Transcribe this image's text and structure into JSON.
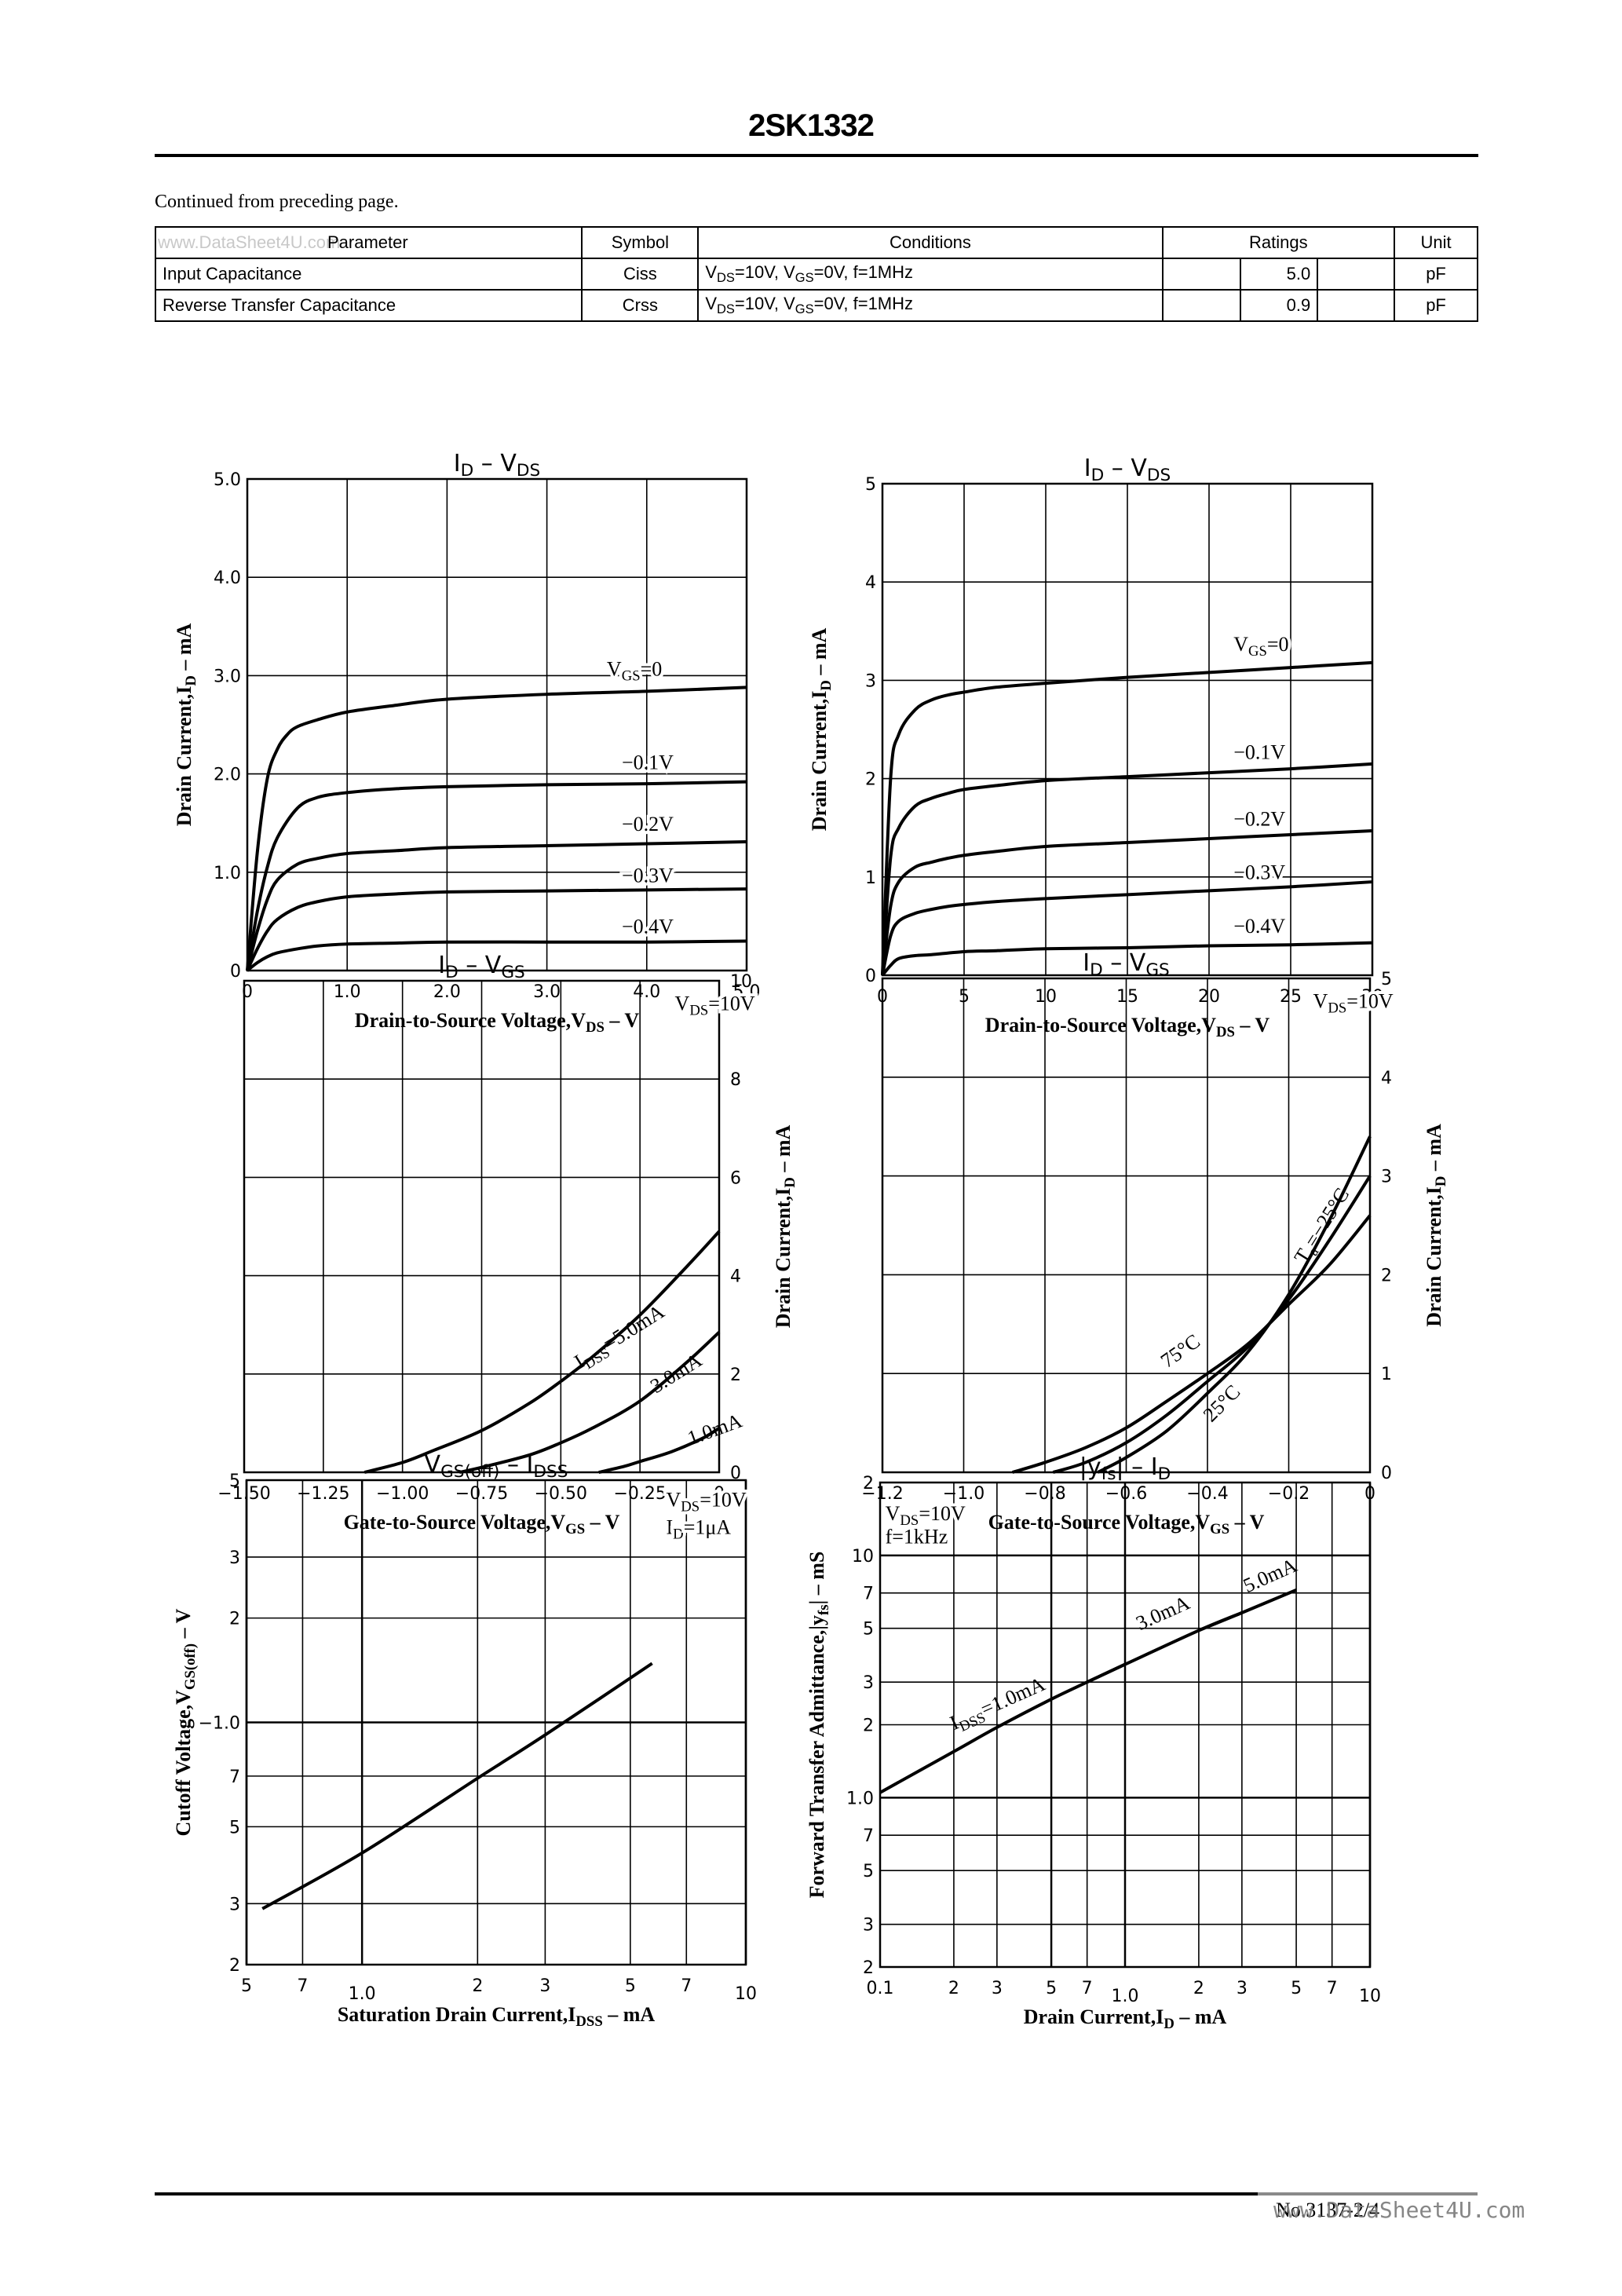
{
  "header": {
    "part_number": "2SK1332",
    "continued_note": "Continued from preceding page."
  },
  "spec_table": {
    "watermark": "www.DataSheet4U.com",
    "columns": [
      "Parameter",
      "Symbol",
      "Conditions",
      "Ratings",
      "Unit"
    ],
    "rows": [
      {
        "parameter": "Input Capacitance",
        "symbol": "Ciss",
        "conditions": "VDS=10V, VGS=0V, f=1MHz",
        "min": "",
        "typ": "5.0",
        "max": "",
        "unit": "pF"
      },
      {
        "parameter": "Reverse Transfer Capacitance",
        "symbol": "Crss",
        "conditions": "VDS=10V, VGS=0V, f=1MHz",
        "min": "",
        "typ": "0.9",
        "max": "",
        "unit": "pF"
      }
    ]
  },
  "footer": {
    "page_number": "No.3137-2/4",
    "watermark": "www.DataSheet4U.com"
  },
  "chart_data": [
    {
      "id": "id_vds_5v",
      "type": "line",
      "title": "ID – VDS",
      "xlabel": "Drain-to-Source Voltage,VDS – V",
      "ylabel": "Drain Current,ID – mA",
      "xlim": [
        0,
        5.0
      ],
      "ylim": [
        0,
        5.0
      ],
      "xticks": [
        0,
        1.0,
        2.0,
        3.0,
        4.0,
        5.0
      ],
      "xtick_labels": [
        "0",
        "1.0",
        "2.0",
        "3.0",
        "4.0",
        "5.0"
      ],
      "yticks": [
        0,
        1.0,
        2.0,
        3.0,
        4.0,
        5.0
      ],
      "ytick_labels": [
        "0",
        "1.0",
        "2.0",
        "3.0",
        "4.0",
        "5.0"
      ],
      "grid": true,
      "series": [
        {
          "name": "VGS=0",
          "x": [
            0,
            0.1,
            0.2,
            0.3,
            0.4,
            0.5,
            0.7,
            1.0,
            1.5,
            2.0,
            3.0,
            4.0,
            5.0
          ],
          "y": [
            0,
            1.2,
            1.95,
            2.25,
            2.4,
            2.48,
            2.55,
            2.63,
            2.7,
            2.76,
            2.81,
            2.84,
            2.88
          ]
        },
        {
          "name": "-0.1V",
          "x": [
            0,
            0.1,
            0.2,
            0.3,
            0.5,
            0.7,
            1.0,
            1.5,
            2.0,
            3.0,
            4.0,
            5.0
          ],
          "y": [
            0,
            0.6,
            1.05,
            1.35,
            1.65,
            1.76,
            1.81,
            1.85,
            1.87,
            1.89,
            1.9,
            1.92
          ]
        },
        {
          "name": "-0.2V",
          "x": [
            0,
            0.1,
            0.2,
            0.3,
            0.5,
            0.7,
            1.0,
            1.5,
            2.0,
            3.0,
            4.0,
            5.0
          ],
          "y": [
            0,
            0.4,
            0.72,
            0.92,
            1.08,
            1.14,
            1.19,
            1.22,
            1.25,
            1.27,
            1.29,
            1.31
          ]
        },
        {
          "name": "-0.3V",
          "x": [
            0,
            0.1,
            0.2,
            0.3,
            0.5,
            0.7,
            1.0,
            1.5,
            2.0,
            3.0,
            4.0,
            5.0
          ],
          "y": [
            0,
            0.22,
            0.4,
            0.52,
            0.64,
            0.7,
            0.75,
            0.78,
            0.8,
            0.81,
            0.82,
            0.83
          ]
        },
        {
          "name": "-0.4V",
          "x": [
            0,
            0.1,
            0.2,
            0.3,
            0.5,
            0.7,
            1.0,
            1.5,
            2.0,
            3.0,
            4.0,
            5.0
          ],
          "y": [
            0,
            0.08,
            0.14,
            0.18,
            0.22,
            0.25,
            0.27,
            0.28,
            0.29,
            0.29,
            0.29,
            0.3
          ]
        }
      ],
      "annotations": [
        {
          "text": "VGS=0",
          "x": 3.6,
          "y": 3.0
        },
        {
          "text": "−0.1V",
          "x": 3.75,
          "y": 2.05
        },
        {
          "text": "−0.2V",
          "x": 3.75,
          "y": 1.42
        },
        {
          "text": "−0.3V",
          "x": 3.75,
          "y": 0.9
        },
        {
          "text": "−0.4V",
          "x": 3.75,
          "y": 0.38
        }
      ]
    },
    {
      "id": "id_vds_30v",
      "type": "line",
      "title": "ID – VDS",
      "xlabel": "Drain-to-Source Voltage,VDS – V",
      "ylabel": "Drain Current,ID – mA",
      "xlim": [
        0,
        30
      ],
      "ylim": [
        0,
        5
      ],
      "xticks": [
        0,
        5,
        10,
        15,
        20,
        25,
        30
      ],
      "xtick_labels": [
        "0",
        "5",
        "10",
        "15",
        "20",
        "25",
        "30"
      ],
      "yticks": [
        0,
        1,
        2,
        3,
        4,
        5
      ],
      "ytick_labels": [
        "0",
        "1",
        "2",
        "3",
        "4",
        "5"
      ],
      "grid": true,
      "series": [
        {
          "name": "VGS=0",
          "x": [
            0,
            0.5,
            1,
            2,
            3,
            4,
            5,
            7,
            10,
            15,
            20,
            25,
            30
          ],
          "y": [
            0,
            2.0,
            2.45,
            2.7,
            2.8,
            2.85,
            2.88,
            2.93,
            2.97,
            3.03,
            3.08,
            3.13,
            3.18
          ]
        },
        {
          "name": "-0.1V",
          "x": [
            0,
            0.5,
            1,
            2,
            3,
            4,
            5,
            7,
            10,
            15,
            20,
            25,
            30
          ],
          "y": [
            0,
            1.2,
            1.5,
            1.72,
            1.8,
            1.85,
            1.89,
            1.93,
            1.98,
            2.02,
            2.06,
            2.1,
            2.15
          ]
        },
        {
          "name": "-0.2V",
          "x": [
            0,
            0.5,
            1,
            2,
            3,
            4,
            5,
            7,
            10,
            15,
            20,
            25,
            30
          ],
          "y": [
            0,
            0.7,
            0.95,
            1.1,
            1.15,
            1.19,
            1.22,
            1.26,
            1.31,
            1.35,
            1.39,
            1.43,
            1.47
          ]
        },
        {
          "name": "-0.3V",
          "x": [
            0,
            0.5,
            1,
            2,
            3,
            4,
            5,
            7,
            10,
            15,
            20,
            25,
            30
          ],
          "y": [
            0,
            0.4,
            0.55,
            0.63,
            0.67,
            0.7,
            0.72,
            0.75,
            0.78,
            0.82,
            0.86,
            0.9,
            0.95
          ]
        },
        {
          "name": "-0.4V",
          "x": [
            0,
            0.5,
            1,
            2,
            3,
            5,
            7,
            10,
            15,
            20,
            25,
            30
          ],
          "y": [
            0,
            0.1,
            0.17,
            0.2,
            0.21,
            0.24,
            0.25,
            0.27,
            0.28,
            0.3,
            0.31,
            0.33
          ]
        }
      ],
      "annotations": [
        {
          "text": "VGS=0",
          "x": 21.5,
          "y": 3.3
        },
        {
          "text": "−0.1V",
          "x": 21.5,
          "y": 2.2
        },
        {
          "text": "−0.2V",
          "x": 21.5,
          "y": 1.52
        },
        {
          "text": "−0.3V",
          "x": 21.5,
          "y": 0.98
        },
        {
          "text": "−0.4V",
          "x": 21.5,
          "y": 0.43
        }
      ]
    },
    {
      "id": "id_vgs_idss",
      "type": "line",
      "title": "ID – VGS",
      "xlabel": "Gate-to-Source Voltage,VGS – V",
      "ylabel": "Drain Current,ID – mA",
      "y_axis_side": "right",
      "xlim": [
        -1.5,
        0
      ],
      "ylim": [
        0,
        10
      ],
      "xticks": [
        -1.5,
        -1.25,
        -1.0,
        -0.75,
        -0.5,
        -0.25,
        0
      ],
      "xtick_labels": [
        "−1.50",
        "−1.25",
        "−1.00",
        "−0.75",
        "−0.50",
        "−0.25",
        "0"
      ],
      "yticks": [
        0,
        2,
        4,
        6,
        8,
        10
      ],
      "ytick_labels": [
        "0",
        "2",
        "4",
        "6",
        "8",
        "10"
      ],
      "grid": true,
      "condition": "VDS=10V",
      "series": [
        {
          "name": "IDSS=5.0mA",
          "x": [
            -1.12,
            -1.0,
            -0.9,
            -0.75,
            -0.6,
            -0.5,
            -0.4,
            -0.25,
            -0.1,
            0
          ],
          "y": [
            0,
            0.2,
            0.45,
            0.85,
            1.4,
            1.85,
            2.35,
            3.2,
            4.2,
            4.9
          ]
        },
        {
          "name": "3.0mA",
          "x": [
            -0.82,
            -0.75,
            -0.6,
            -0.5,
            -0.4,
            -0.25,
            -0.1,
            0
          ],
          "y": [
            0,
            0.1,
            0.35,
            0.6,
            0.9,
            1.45,
            2.25,
            2.85
          ]
        },
        {
          "name": "1.0mA",
          "x": [
            -0.38,
            -0.3,
            -0.25,
            -0.15,
            -0.05,
            0
          ],
          "y": [
            0,
            0.12,
            0.22,
            0.42,
            0.7,
            0.9
          ]
        }
      ],
      "annotations": [
        {
          "text": "VDS=10V",
          "x": -0.14,
          "y": 9.4
        },
        {
          "text": "IDSS=5.0mA",
          "x": -0.44,
          "y": 2.1,
          "rotate": -32
        },
        {
          "text": "3.0mA",
          "x": -0.2,
          "y": 1.6,
          "rotate": -32
        },
        {
          "text": "1.0mA",
          "x": -0.09,
          "y": 0.55,
          "rotate": -20
        }
      ]
    },
    {
      "id": "id_vgs_temp",
      "type": "line",
      "title": "ID – VGS",
      "xlabel": "Gate-to-Source Voltage,VGS – V",
      "ylabel": "Drain Current,ID – mA",
      "y_axis_side": "right",
      "xlim": [
        -1.2,
        0
      ],
      "ylim": [
        0,
        5
      ],
      "xticks": [
        -1.2,
        -1.0,
        -0.8,
        -0.6,
        -0.4,
        -0.2,
        0
      ],
      "xtick_labels": [
        "−1.2",
        "−1.0",
        "−0.8",
        "−0.6",
        "−0.4",
        "−0.2",
        "0"
      ],
      "yticks": [
        0,
        1,
        2,
        3,
        4,
        5
      ],
      "ytick_labels": [
        "0",
        "1",
        "2",
        "3",
        "4",
        "5"
      ],
      "grid": true,
      "condition": "VDS=10V",
      "series": [
        {
          "name": "Ta=75°C",
          "x": [
            -0.88,
            -0.8,
            -0.7,
            -0.6,
            -0.5,
            -0.4,
            -0.3,
            -0.2,
            -0.1,
            0
          ],
          "y": [
            0,
            0.1,
            0.25,
            0.45,
            0.72,
            1.0,
            1.3,
            1.7,
            2.1,
            2.6
          ]
        },
        {
          "name": "Ta=25°C",
          "x": [
            -0.78,
            -0.7,
            -0.6,
            -0.5,
            -0.4,
            -0.3,
            -0.2,
            -0.1,
            0
          ],
          "y": [
            0,
            0.1,
            0.3,
            0.58,
            0.92,
            1.27,
            1.75,
            2.35,
            3.0
          ]
        },
        {
          "name": "Ta=−25°C",
          "x": [
            -0.67,
            -0.6,
            -0.5,
            -0.4,
            -0.3,
            -0.2,
            -0.1,
            0
          ],
          "y": [
            0,
            0.15,
            0.42,
            0.8,
            1.22,
            1.8,
            2.55,
            3.4
          ]
        }
      ],
      "annotations": [
        {
          "text": "VDS=10V",
          "x": -0.14,
          "y": 4.7
        },
        {
          "text": "Ta=−25°C",
          "x": -0.16,
          "y": 2.1,
          "rotate": -58
        },
        {
          "text": "75°C",
          "x": -0.5,
          "y": 1.05,
          "rotate": -35
        },
        {
          "text": "25°C",
          "x": -0.39,
          "y": 0.5,
          "rotate": -45
        }
      ]
    },
    {
      "id": "vgsoff_idss",
      "type": "line",
      "title": "VGS(off) – IDSS",
      "xlabel": "Saturation Drain Current,IDSS – mA",
      "ylabel": "Cutoff Voltage,VGS(off) – V",
      "xscale": "log",
      "yscale": "log",
      "xlim": [
        0.5,
        10
      ],
      "ylim": [
        0.2,
        5
      ],
      "xticks": [
        0.5,
        0.7,
        1.0,
        2,
        3,
        5,
        7,
        10
      ],
      "xtick_labels": [
        "5",
        "7",
        "1.0",
        "2",
        "3",
        "5",
        "7",
        "10"
      ],
      "yticks": [
        0.2,
        0.3,
        0.5,
        0.7,
        1.0,
        2,
        3,
        5
      ],
      "ytick_labels": [
        "2",
        "3",
        "5",
        "7",
        "−1.0",
        "2",
        "3",
        "5"
      ],
      "grid": true,
      "condition": "VDS=10V, ID=1μA",
      "series": [
        {
          "name": "VGS(off)",
          "x": [
            0.55,
            1.0,
            2.0,
            3.0,
            5.7
          ],
          "y": [
            0.29,
            0.42,
            0.69,
            0.92,
            1.48
          ]
        }
      ],
      "annotations": [
        {
          "text": "VDS=10V",
          "x": 6.2,
          "y": 4.2
        },
        {
          "text": "ID=1μA",
          "x": 6.2,
          "y": 3.5
        }
      ]
    },
    {
      "id": "yfs_id",
      "type": "line",
      "title": "|yfs| – ID",
      "xlabel": "Drain Current,ID – mA",
      "ylabel": "Forward Transfer Admittance,|yfs| – mS",
      "xscale": "log",
      "yscale": "log",
      "xlim": [
        0.1,
        10
      ],
      "ylim": [
        0.2,
        20
      ],
      "xticks": [
        0.1,
        0.2,
        0.3,
        0.5,
        0.7,
        1.0,
        2,
        3,
        5,
        7,
        10
      ],
      "xtick_labels": [
        "0.1",
        "2",
        "3",
        "5",
        "7",
        "1.0",
        "2",
        "3",
        "5",
        "7",
        "10"
      ],
      "yticks": [
        0.2,
        0.3,
        0.5,
        0.7,
        1.0,
        2,
        3,
        5,
        7,
        10,
        20
      ],
      "ytick_labels": [
        "2",
        "3",
        "5",
        "7",
        "1.0",
        "2",
        "3",
        "5",
        "7",
        "10",
        "2"
      ],
      "grid": true,
      "condition": "VDS=10V, f=1kHz",
      "series": [
        {
          "name": "IDSS=1.0mA",
          "x": [
            0.1,
            0.2,
            0.3,
            0.5,
            0.7,
            1.0
          ],
          "y": [
            1.05,
            1.55,
            1.95,
            2.55,
            3.0,
            3.55
          ]
        },
        {
          "name": "3.0mA",
          "x": [
            0.7,
            1.0,
            2.0,
            3.0
          ],
          "y": [
            3.0,
            3.55,
            4.9,
            5.8
          ]
        },
        {
          "name": "5.0mA",
          "x": [
            2.0,
            3.0,
            5.0
          ],
          "y": [
            4.9,
            5.8,
            7.2
          ]
        }
      ],
      "annotations": [
        {
          "text": "VDS=10V",
          "x": 0.105,
          "y": 14
        },
        {
          "text": "f=1kHz",
          "x": 0.105,
          "y": 11.2
        },
        {
          "text": "IDSS=1.0mA",
          "x": 0.2,
          "y": 1.9,
          "rotate": -24
        },
        {
          "text": "3.0mA",
          "x": 1.15,
          "y": 4.9,
          "rotate": -24
        },
        {
          "text": "5.0mA",
          "x": 3.15,
          "y": 7.0,
          "rotate": -24
        }
      ]
    }
  ]
}
